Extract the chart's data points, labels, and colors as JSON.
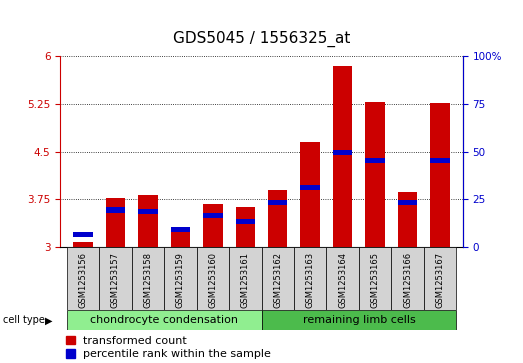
{
  "title": "GDS5045 / 1556325_at",
  "samples": [
    "GSM1253156",
    "GSM1253157",
    "GSM1253158",
    "GSM1253159",
    "GSM1253160",
    "GSM1253161",
    "GSM1253162",
    "GSM1253163",
    "GSM1253164",
    "GSM1253165",
    "GSM1253166",
    "GSM1253167"
  ],
  "transformed_count": [
    3.08,
    3.77,
    3.82,
    3.32,
    3.68,
    3.62,
    3.9,
    4.65,
    5.85,
    5.28,
    3.86,
    5.26
  ],
  "percentile_rank": [
    5,
    18,
    17,
    8,
    15,
    12,
    22,
    30,
    48,
    44,
    22,
    44
  ],
  "cell_types": [
    {
      "label": "chondrocyte condensation",
      "start": 0,
      "end": 5,
      "color": "#90ee90"
    },
    {
      "label": "remaining limb cells",
      "start": 6,
      "end": 11,
      "color": "#4cbb4c"
    }
  ],
  "ylim_left": [
    3.0,
    6.0
  ],
  "ylim_right": [
    0,
    100
  ],
  "yticks_left": [
    3.0,
    3.75,
    4.5,
    5.25,
    6.0
  ],
  "yticks_right": [
    0,
    25,
    50,
    75,
    100
  ],
  "bar_color_red": "#cc0000",
  "bar_color_blue": "#0000cc",
  "bar_width": 0.6,
  "bg_color_xticklabels": "#d3d3d3",
  "title_fontsize": 11,
  "tick_fontsize": 7.5,
  "cell_type_label_fontsize": 8,
  "legend_fontsize": 8,
  "left_tick_color": "#cc0000",
  "right_tick_color": "#0000cc",
  "blue_bar_height": 0.08
}
